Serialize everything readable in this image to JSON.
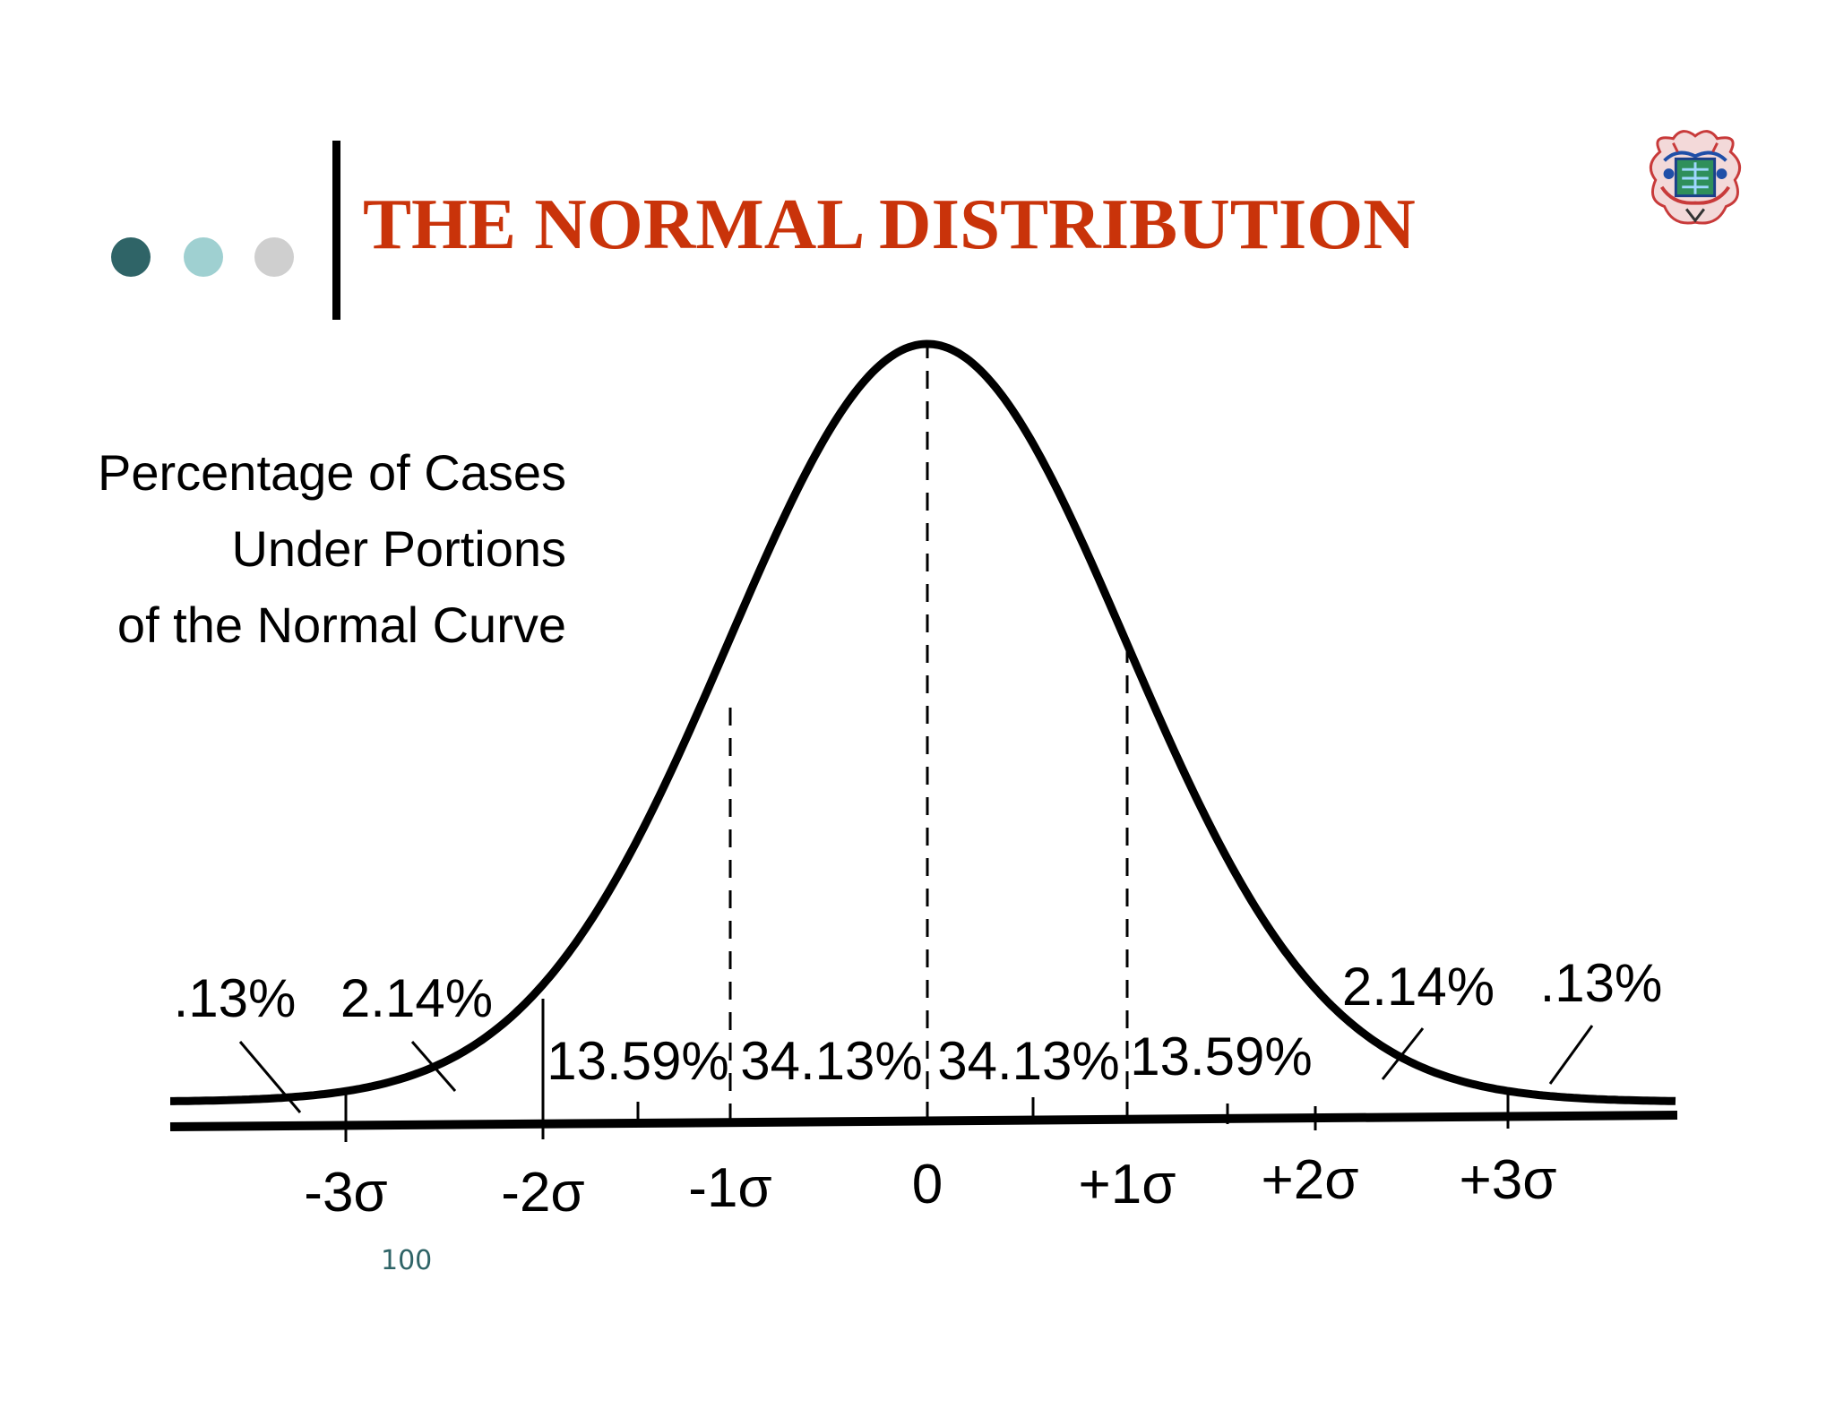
{
  "slide": {
    "title": "THE NORMAL DISTRIBUTION",
    "page_number": "100",
    "colors": {
      "title": "#c9330a",
      "dot_1": "#2f6467",
      "dot_2": "#9fd0d1",
      "dot_3": "#cfcfcf",
      "page_number": "#2f6467",
      "ink": "#000000"
    },
    "logo_icon": "university-crest-icon"
  },
  "diagram": {
    "caption_lines": [
      "Percentage of Cases",
      "Under Portions",
      "of the Normal Curve"
    ],
    "axis_labels": [
      "-3σ",
      "-2σ",
      "-1σ",
      "0",
      "+1σ",
      "+2σ",
      "+3σ"
    ],
    "region_labels": {
      "left_tail": ".13%",
      "left_outer": "2.14%",
      "left_middle": "13.59%",
      "left_center": "34.13%",
      "right_center": "34.13%",
      "right_middle": "13.59%",
      "right_outer": "2.14%",
      "right_tail": ".13%"
    }
  }
}
